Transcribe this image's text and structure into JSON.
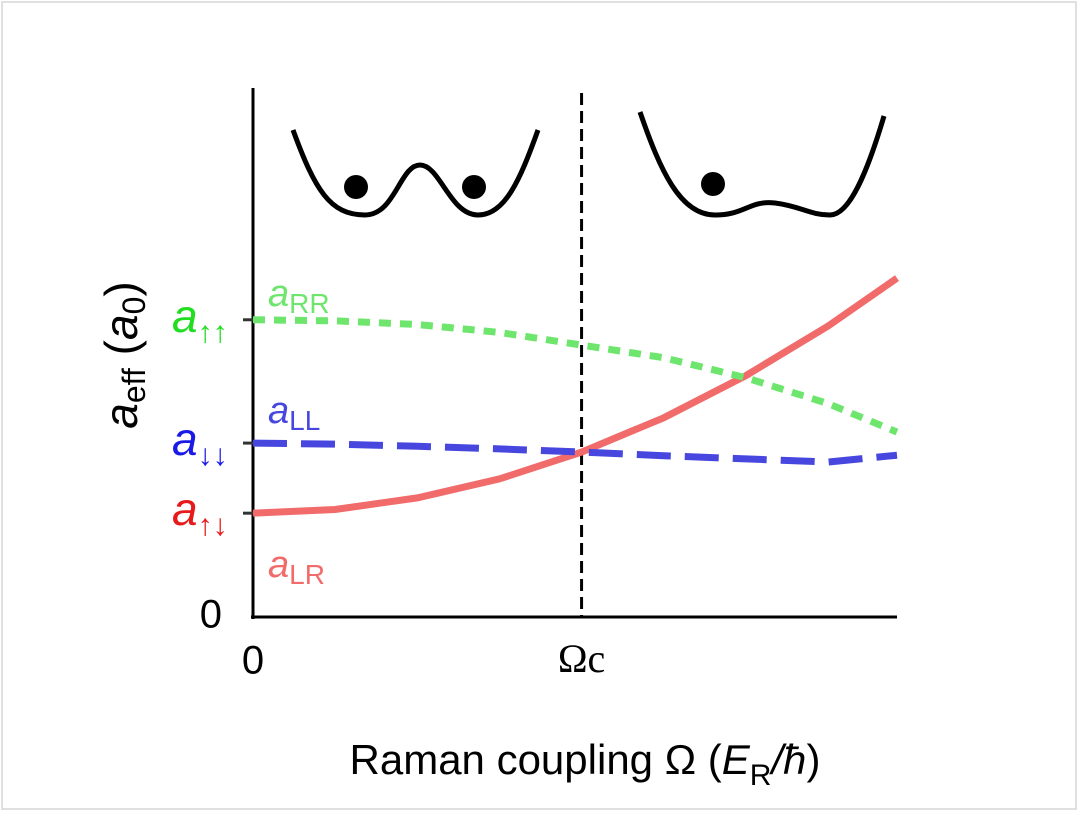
{
  "chart_data": {
    "type": "line",
    "ylabel": [
      "a",
      "eff",
      " (",
      "a",
      "0",
      ")"
    ],
    "xlabel": [
      "Raman coupling Ω (",
      "E",
      "R",
      "/",
      "ħ",
      ")"
    ],
    "x": [
      0,
      0.25,
      0.5,
      0.75,
      1,
      1.25,
      1.5,
      1.75,
      1.96
    ],
    "xlim": [
      0,
      1.96
    ],
    "ylim": [
      0,
      10
    ],
    "xticks": [
      0,
      {
        "value": 1,
        "label": "Ωc"
      }
    ],
    "yticks": [
      0
    ],
    "series": [
      {
        "name": [
          "a",
          "LR"
        ],
        "color": "#f26b6b",
        "dash": "solid",
        "values": [
          1.97,
          2.04,
          2.26,
          2.62,
          3.13,
          3.78,
          4.58,
          5.52,
          6.43
        ]
      },
      {
        "name": [
          "a",
          "LL"
        ],
        "color": "#4747e0",
        "dash": "long",
        "values": [
          3.3,
          3.28,
          3.24,
          3.19,
          3.13,
          3.06,
          3.0,
          2.94,
          3.07
        ]
      },
      {
        "name": [
          "a",
          "RR"
        ],
        "color": "#6ee66e",
        "dash": "short",
        "values": [
          5.64,
          5.62,
          5.55,
          5.4,
          5.16,
          4.92,
          4.54,
          4.05,
          3.51
        ]
      }
    ],
    "annotations": [
      {
        "text": [
          "a",
          "↑↓"
        ],
        "color": "#e61a1a"
      },
      {
        "text": [
          "a",
          "↓↓"
        ],
        "color": "#1a1ae6"
      },
      {
        "text": [
          "a",
          "↑↑"
        ],
        "color": "#22dd22"
      }
    ]
  }
}
